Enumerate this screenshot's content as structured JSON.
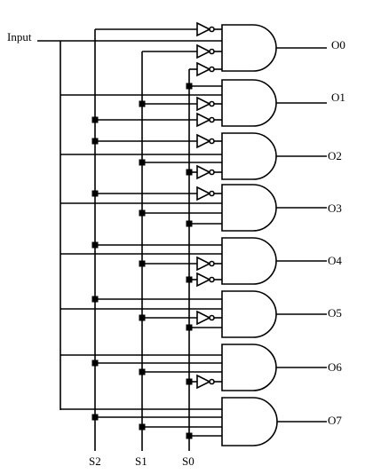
{
  "diagram": {
    "type": "1-to-8 demultiplexer logic circuit",
    "input_label": "Input",
    "select_labels": [
      "S2",
      "S1",
      "S0"
    ],
    "output_labels": [
      "O0",
      "O1",
      "O2",
      "O3",
      "O4",
      "O5",
      "O6",
      "O7"
    ],
    "gate": "AND",
    "inverter": "NOT",
    "gates": [
      {
        "output": "O0",
        "inverted": [
          "S2",
          "S1",
          "S0"
        ]
      },
      {
        "output": "O1",
        "inverted": [
          "S2",
          "S1"
        ]
      },
      {
        "output": "O2",
        "inverted": [
          "S2",
          "S0"
        ]
      },
      {
        "output": "O3",
        "inverted": [
          "S2"
        ]
      },
      {
        "output": "O4",
        "inverted": [
          "S1",
          "S0"
        ]
      },
      {
        "output": "O5",
        "inverted": [
          "S1"
        ]
      },
      {
        "output": "O6",
        "inverted": [
          "S0"
        ]
      },
      {
        "output": "O7",
        "inverted": []
      }
    ]
  }
}
